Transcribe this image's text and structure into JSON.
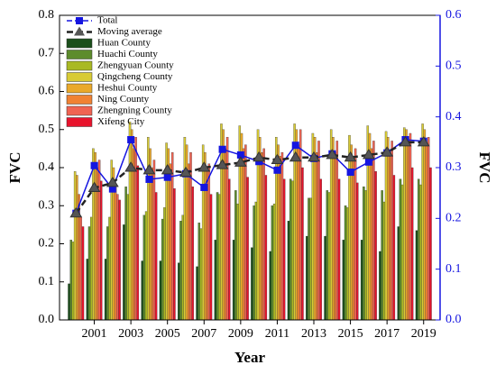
{
  "chart_data": {
    "type": "bar",
    "x_label": "Year",
    "y_label": "FVC",
    "y2_label": "FVC",
    "x": [
      2000,
      2001,
      2002,
      2003,
      2004,
      2005,
      2006,
      2007,
      2008,
      2009,
      2010,
      2011,
      2012,
      2013,
      2014,
      2015,
      2016,
      2017,
      2018,
      2019
    ],
    "xlim": [
      1999.1,
      2019.9
    ],
    "xticks": [
      2001,
      2003,
      2005,
      2007,
      2009,
      2011,
      2013,
      2015,
      2017,
      2019
    ],
    "ylim": [
      0,
      0.8
    ],
    "yticks": [
      {
        "value": 0,
        "label": "0.0"
      },
      {
        "value": 0.1,
        "label": "0.1"
      },
      {
        "value": 0.2,
        "label": "0.2"
      },
      {
        "value": 0.3,
        "label": "0.3"
      },
      {
        "value": 0.4,
        "label": "0.4"
      },
      {
        "value": 0.5,
        "label": "0.5"
      },
      {
        "value": 0.6,
        "label": "0.6"
      },
      {
        "value": 0.7,
        "label": "0.7"
      },
      {
        "value": 0.8,
        "label": "0.8"
      }
    ],
    "y2lim": [
      0,
      0.6
    ],
    "y2ticks": [
      {
        "value": 0,
        "label": "0.0"
      },
      {
        "value": 0.1,
        "label": "0.1"
      },
      {
        "value": 0.2,
        "label": "0.2"
      },
      {
        "value": 0.3,
        "label": "0.3"
      },
      {
        "value": 0.4,
        "label": "0.4"
      },
      {
        "value": 0.5,
        "label": "0.5"
      },
      {
        "value": 0.6,
        "label": "0.6"
      }
    ],
    "y2_color": "#1515e0",
    "legend": "upper left",
    "lines": [
      {
        "name": "Total",
        "color": "#1515e0",
        "axis": "y2",
        "marker": "square",
        "dash": "6,3",
        "values": [
          0.21,
          0.304,
          0.258,
          0.355,
          0.277,
          0.281,
          0.288,
          0.261,
          0.336,
          0.325,
          0.312,
          0.295,
          0.344,
          0.318,
          0.327,
          0.291,
          0.311,
          0.329,
          0.355,
          0.352
        ]
      },
      {
        "name": "Moving average",
        "color": "#222222",
        "axis": "y2",
        "marker": "triangle",
        "dash": "7,4",
        "values": [
          0.21,
          0.26,
          0.27,
          0.3,
          0.295,
          0.295,
          0.29,
          0.3,
          0.305,
          0.31,
          0.32,
          0.315,
          0.32,
          0.32,
          0.325,
          0.32,
          0.325,
          0.33,
          0.35,
          0.35
        ]
      }
    ],
    "series": [
      {
        "name": "Huan County",
        "color": "#1b4f1b",
        "values": [
          0.095,
          0.16,
          0.16,
          0.25,
          0.155,
          0.155,
          0.15,
          0.14,
          0.21,
          0.21,
          0.19,
          0.18,
          0.26,
          0.22,
          0.22,
          0.21,
          0.21,
          0.18,
          0.245,
          0.235
        ]
      },
      {
        "name": "Huachi County",
        "color": "#5d8c2c",
        "values": [
          0.21,
          0.245,
          0.245,
          0.35,
          0.275,
          0.265,
          0.26,
          0.255,
          0.335,
          0.34,
          0.3,
          0.3,
          0.37,
          0.32,
          0.34,
          0.3,
          0.35,
          0.34,
          0.37,
          0.37
        ]
      },
      {
        "name": "Zhengyuan County",
        "color": "#a9b923",
        "values": [
          0.205,
          0.27,
          0.27,
          0.33,
          0.285,
          0.295,
          0.275,
          0.24,
          0.33,
          0.305,
          0.31,
          0.305,
          0.365,
          0.32,
          0.335,
          0.295,
          0.34,
          0.31,
          0.355,
          0.355
        ]
      },
      {
        "name": "Qingcheng County",
        "color": "#d8cb35",
        "values": [
          0.39,
          0.45,
          0.42,
          0.52,
          0.48,
          0.465,
          0.48,
          0.46,
          0.515,
          0.51,
          0.5,
          0.48,
          0.515,
          0.49,
          0.5,
          0.485,
          0.51,
          0.495,
          0.505,
          0.515
        ]
      },
      {
        "name": "Heshui County",
        "color": "#eaa92a",
        "values": [
          0.38,
          0.44,
          0.4,
          0.5,
          0.45,
          0.45,
          0.46,
          0.44,
          0.5,
          0.49,
          0.48,
          0.46,
          0.5,
          0.48,
          0.48,
          0.46,
          0.49,
          0.48,
          0.5,
          0.5
        ]
      },
      {
        "name": "Ning County",
        "color": "#f08233",
        "values": [
          0.33,
          0.4,
          0.35,
          0.45,
          0.4,
          0.41,
          0.41,
          0.39,
          0.45,
          0.45,
          0.44,
          0.43,
          0.46,
          0.44,
          0.44,
          0.42,
          0.45,
          0.44,
          0.47,
          0.46
        ]
      },
      {
        "name": "Zhengning County",
        "color": "#f06352",
        "values": [
          0.27,
          0.42,
          0.33,
          0.48,
          0.42,
          0.44,
          0.44,
          0.41,
          0.48,
          0.46,
          0.45,
          0.44,
          0.5,
          0.47,
          0.47,
          0.45,
          0.47,
          0.47,
          0.49,
          0.48
        ]
      },
      {
        "name": "Xifeng City",
        "color": "#e8132c",
        "values": [
          0.245,
          0.365,
          0.315,
          0.405,
          0.335,
          0.345,
          0.35,
          0.33,
          0.37,
          0.375,
          0.38,
          0.37,
          0.4,
          0.37,
          0.37,
          0.36,
          0.39,
          0.38,
          0.4,
          0.4
        ]
      }
    ]
  }
}
